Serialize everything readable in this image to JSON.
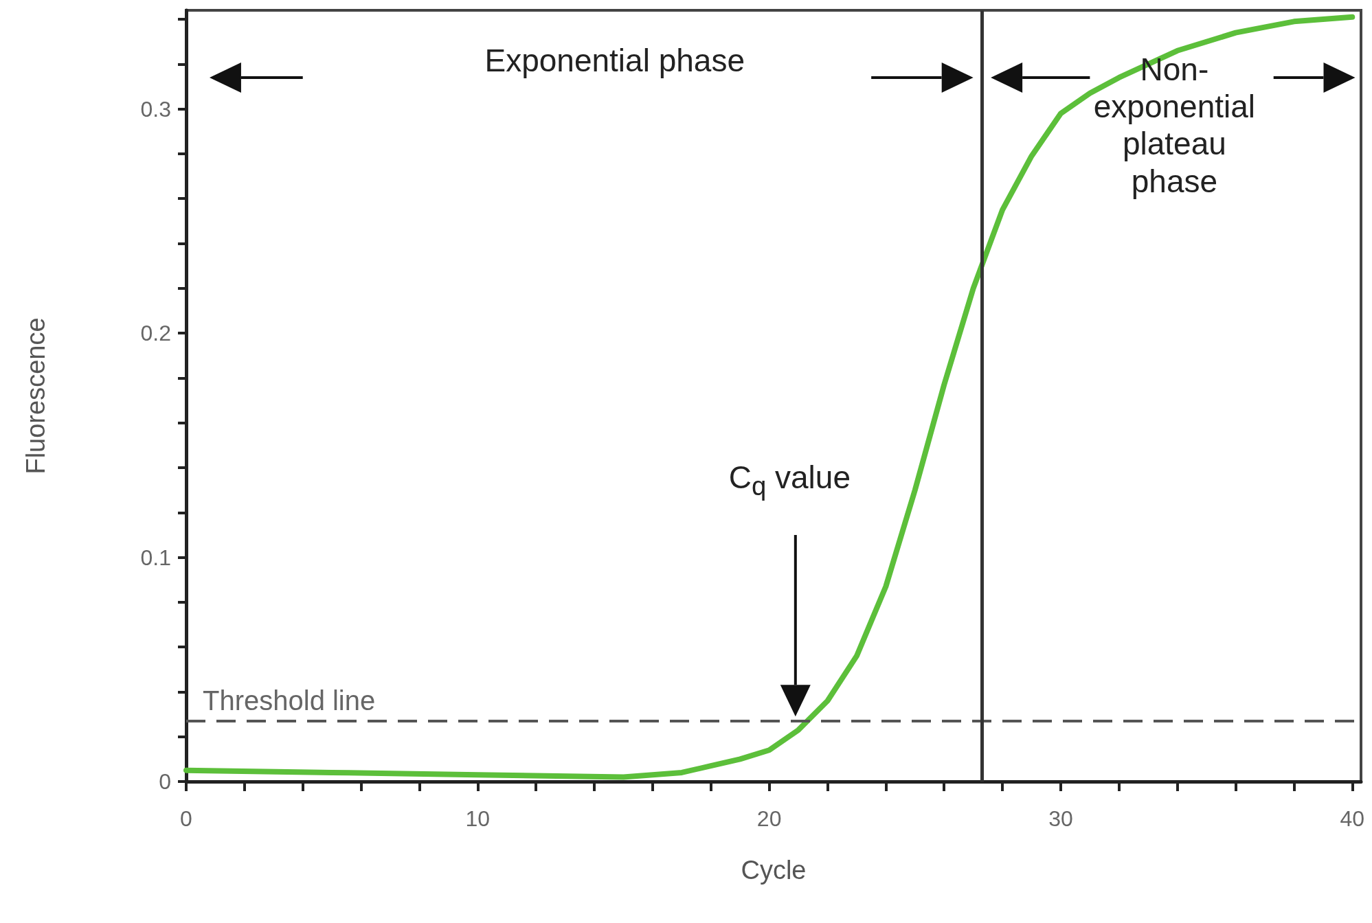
{
  "chart_data": {
    "type": "line",
    "xlabel": "Cycle",
    "ylabel": "Fluorescence",
    "xlim": [
      0,
      40.3
    ],
    "ylim": [
      0,
      0.344
    ],
    "xticks": [
      0,
      {
        "value": 2,
        "label": null
      },
      {
        "value": 4,
        "label": null
      },
      {
        "value": 6,
        "label": null
      },
      {
        "value": 8,
        "label": null
      },
      10,
      {
        "value": 12,
        "label": null
      },
      {
        "value": 14,
        "label": null
      },
      {
        "value": 16,
        "label": null
      },
      {
        "value": 18,
        "label": null
      },
      20,
      {
        "value": 22,
        "label": null
      },
      {
        "value": 24,
        "label": null
      },
      {
        "value": 26,
        "label": null
      },
      {
        "value": 28,
        "label": null
      },
      30,
      {
        "value": 32,
        "label": null
      },
      {
        "value": 34,
        "label": null
      },
      {
        "value": 36,
        "label": null
      },
      {
        "value": 38,
        "label": null
      },
      40
    ],
    "yticks": [
      0,
      {
        "value": 0.02,
        "label": null
      },
      {
        "value": 0.04,
        "label": null
      },
      {
        "value": 0.06,
        "label": null
      },
      {
        "value": 0.08,
        "label": null
      },
      0.1,
      {
        "value": 0.12,
        "label": null
      },
      {
        "value": 0.14,
        "label": null
      },
      {
        "value": 0.16,
        "label": null
      },
      {
        "value": 0.18,
        "label": null
      },
      0.2,
      {
        "value": 0.22,
        "label": null
      },
      {
        "value": 0.24,
        "label": null
      },
      {
        "value": 0.26,
        "label": null
      },
      {
        "value": 0.28,
        "label": null
      },
      0.3,
      {
        "value": 0.32,
        "label": null
      },
      {
        "value": 0.34,
        "label": null
      }
    ],
    "series": [
      {
        "color": "#5cbf3a",
        "x": [
          0,
          5,
          10,
          15,
          17,
          18,
          19,
          20,
          21,
          22,
          23,
          24,
          25,
          26,
          27,
          28,
          29,
          30,
          31,
          32,
          34,
          36,
          38,
          40
        ],
        "values": [
          0.005,
          0.004,
          0.003,
          0.002,
          0.004,
          0.007,
          0.01,
          0.014,
          0.023,
          0.036,
          0.056,
          0.087,
          0.13,
          0.177,
          0.22,
          0.255,
          0.279,
          0.298,
          0.307,
          0.314,
          0.326,
          0.334,
          0.339,
          0.341
        ]
      }
    ],
    "ref_lines": [
      {
        "axis": "y",
        "value": 0.027,
        "label": "Threshold line",
        "color": "#555555",
        "line_style": "dashed"
      },
      {
        "axis": "x",
        "value": 27.3,
        "color": "#333333",
        "line_style": "solid"
      }
    ],
    "annotations": [
      "Exponential phase",
      "Non-exponential plateau phase",
      "C$_{q}$ value"
    ],
    "grid": false,
    "line_style": "solid"
  }
}
